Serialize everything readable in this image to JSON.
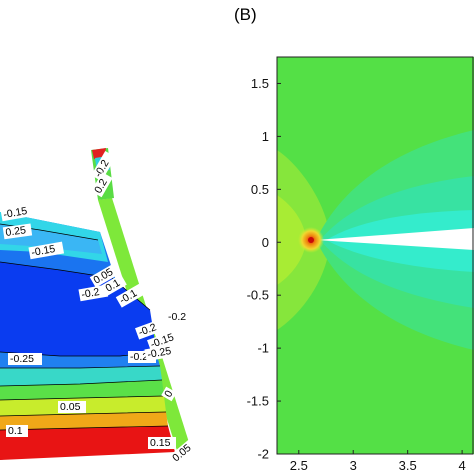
{
  "chart_data": [
    {
      "type": "heatmap",
      "panel_label": "",
      "contour_labels": [
        "-0.2",
        "-0.15",
        "0.25",
        "-0.15",
        "0.05",
        "-0.2",
        "0.1",
        "-0.1",
        "-0.2",
        "-0.15",
        "-0.2",
        "-0.25",
        "0.05",
        "0",
        "0.1",
        "0.15",
        "0.05",
        "0.2",
        "-0.2",
        "-0.25"
      ]
    },
    {
      "type": "heatmap",
      "panel_label": "(B)",
      "x_ticks": [
        "2.5",
        "3",
        "3.5",
        "4"
      ],
      "y_ticks": [
        "1.5",
        "1",
        "0.5",
        "0",
        "-0.5",
        "-1",
        "-1.5",
        "-2"
      ],
      "xlim": [
        2.3,
        4.1
      ],
      "ylim": [
        -2.0,
        1.75
      ],
      "tip_x": 2.5,
      "tip_y": 0.0
    }
  ],
  "colors": {
    "background_green": "#54e046",
    "light_green": "#8ae83c",
    "yellow_green": "#b8ee32",
    "wake_cyan": "#34e2a6",
    "wake_aqua": "#36ecd8",
    "blue": "#0a3cf0",
    "red": "#e81414"
  }
}
